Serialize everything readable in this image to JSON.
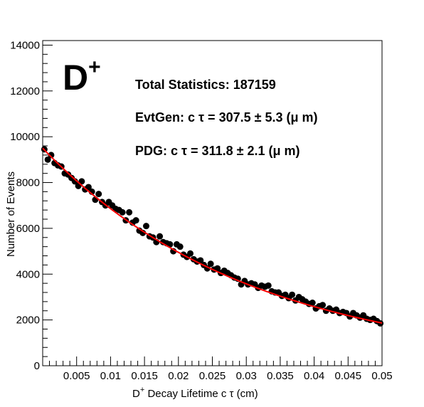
{
  "chart_data": {
    "type": "scatter",
    "title": "",
    "particle_label": "D",
    "particle_charge": "+",
    "annotations": [
      "Total Statistics: 187159",
      "EvtGen: c  τ = 307.5  ± 5.3 (μ m)",
      "PDG: c  τ = 311.8  ± 2.1 (μ m)"
    ],
    "xlabel_main": "D",
    "xlabel_sup": "+",
    "xlabel_rest": " Decay Lifetime c   τ (cm)",
    "ylabel": "Number of Events",
    "xlim": [
      0,
      0.05
    ],
    "ylim": [
      0,
      14200
    ],
    "x_ticks": [
      0.005,
      0.01,
      0.015,
      0.02,
      0.025,
      0.03,
      0.035,
      0.04,
      0.045,
      0.05
    ],
    "x_tick_labels": [
      "0.005",
      "0.01",
      "0.015",
      "0.02",
      "0.025",
      "0.03",
      "0.035",
      "0.04",
      "0.045",
      "0.05"
    ],
    "y_ticks": [
      0,
      2000,
      4000,
      6000,
      8000,
      10000,
      12000,
      14000
    ],
    "y_tick_labels": [
      "0",
      "2000",
      "4000",
      "6000",
      "8000",
      "10000",
      "12000",
      "14000"
    ],
    "grid": false,
    "colors": {
      "data": "#000000",
      "fit": "#ff0000"
    },
    "series": [
      {
        "x": [
          0.00025,
          0.00075,
          0.00125,
          0.00175,
          0.00225,
          0.00275,
          0.00325,
          0.00375,
          0.00425,
          0.00475,
          0.00525,
          0.00575,
          0.00625,
          0.00675,
          0.00725,
          0.00775,
          0.00825,
          0.00875,
          0.00925,
          0.00975,
          0.01025,
          0.01075,
          0.01125,
          0.01175,
          0.01225,
          0.01275,
          0.01325,
          0.01375,
          0.01425,
          0.01475,
          0.01525,
          0.01575,
          0.01625,
          0.01675,
          0.01725,
          0.01775,
          0.01825,
          0.01875,
          0.01925,
          0.01975,
          0.02025,
          0.02075,
          0.02125,
          0.02175,
          0.02225,
          0.02275,
          0.02325,
          0.02375,
          0.02425,
          0.02475,
          0.02525,
          0.02575,
          0.02625,
          0.02675,
          0.02725,
          0.02775,
          0.02825,
          0.02875,
          0.02925,
          0.02975,
          0.03025,
          0.03075,
          0.03125,
          0.03175,
          0.03225,
          0.03275,
          0.03325,
          0.03375,
          0.03425,
          0.03475,
          0.03525,
          0.03575,
          0.03625,
          0.03675,
          0.03725,
          0.03775,
          0.03825,
          0.03875,
          0.03925,
          0.03975,
          0.04025,
          0.04075,
          0.04125,
          0.04175,
          0.04225,
          0.04275,
          0.04325,
          0.04375,
          0.04425,
          0.04475,
          0.04525,
          0.04575,
          0.04625,
          0.04675,
          0.04725,
          0.04775,
          0.04825,
          0.04875,
          0.04925,
          0.04975
        ],
        "values": [
          9450,
          9000,
          9200,
          8850,
          8750,
          8700,
          8400,
          8350,
          8200,
          8050,
          7850,
          8050,
          7700,
          7800,
          7600,
          7250,
          7500,
          7150,
          7000,
          7150,
          7000,
          6850,
          6800,
          6700,
          6350,
          6700,
          6250,
          6350,
          5900,
          5800,
          6100,
          5650,
          5600,
          5400,
          5650,
          5400,
          5350,
          5300,
          5000,
          5300,
          5200,
          4850,
          4750,
          4900,
          4650,
          4550,
          4600,
          4400,
          4250,
          4450,
          4200,
          4250,
          4050,
          4150,
          4050,
          3950,
          3850,
          3800,
          3550,
          3700,
          3550,
          3600,
          3550,
          3400,
          3500,
          3450,
          3500,
          3250,
          3200,
          3200,
          3050,
          3100,
          2950,
          3100,
          2850,
          3000,
          2900,
          2800,
          2700,
          2750,
          2500,
          2600,
          2650,
          2400,
          2500,
          2400,
          2450,
          2300,
          2350,
          2300,
          2150,
          2300,
          2200,
          2100,
          2200,
          2050,
          2000,
          2050,
          1950,
          1850
        ]
      }
    ],
    "fit": {
      "type": "exponential",
      "amplitude": 9500,
      "decay_length": 0.0307
    }
  }
}
